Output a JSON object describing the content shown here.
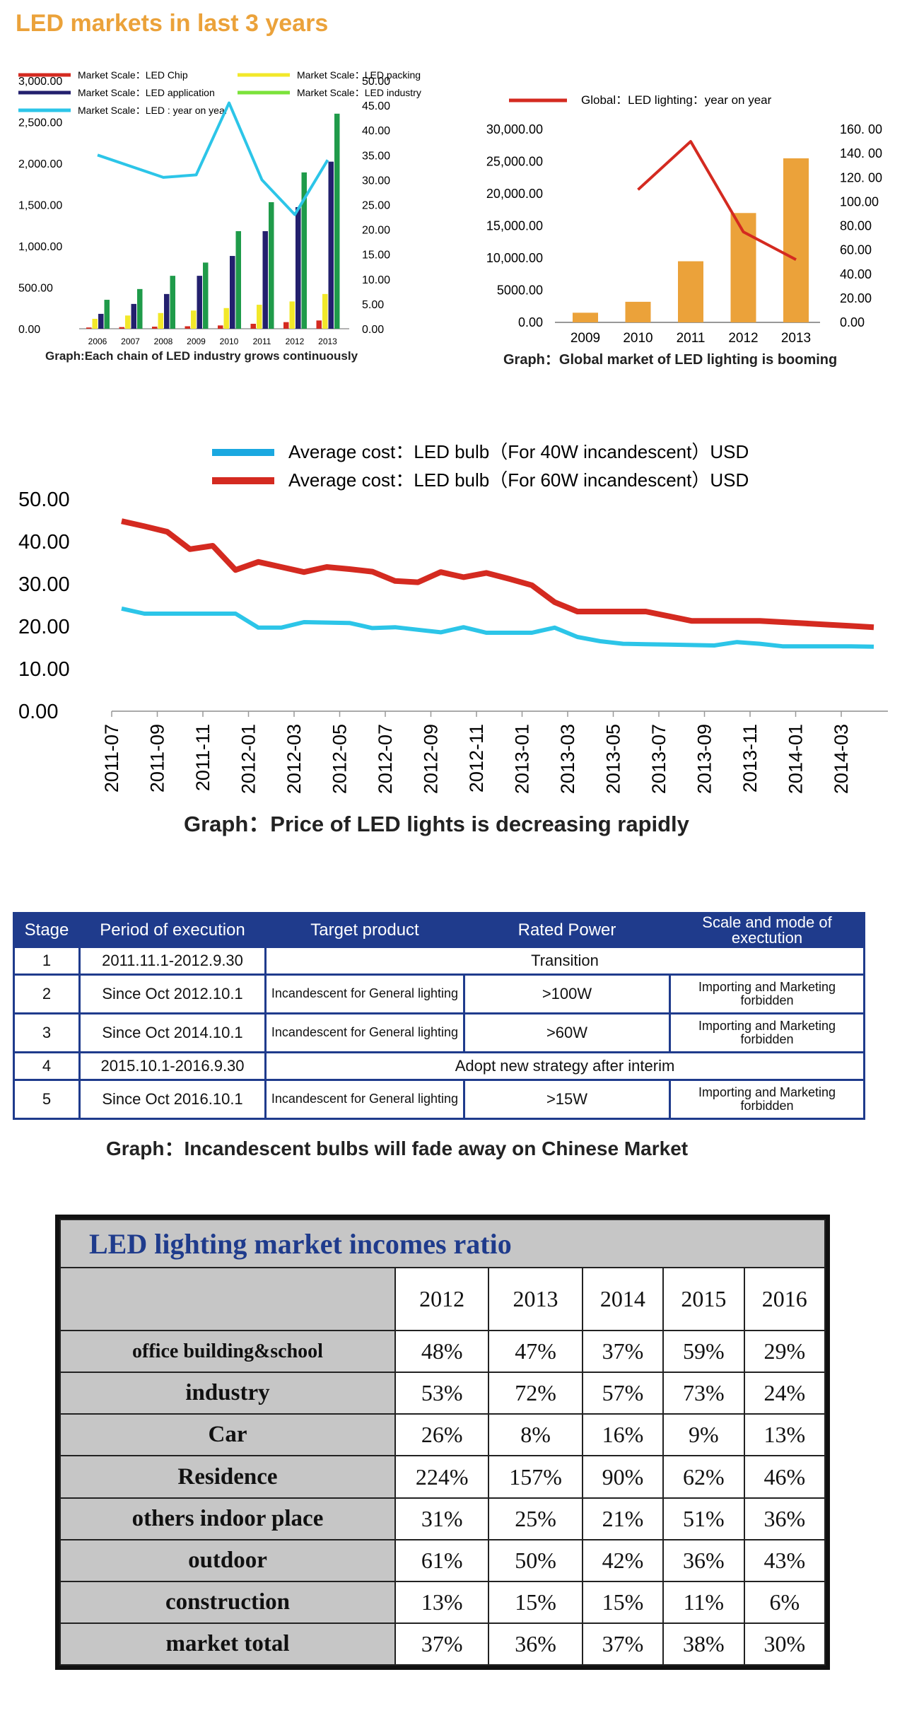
{
  "page_title": "LED markets in last 3 years",
  "chart1": {
    "legend": [
      "Market Scale：LED Chip",
      "Market Scale：LED packing",
      "Market Scale：LED application",
      "Market Scale：LED industry",
      "Market Scale：LED : year on year"
    ],
    "caption": "Graph:Each chain of LED industry grows continuously"
  },
  "chart2": {
    "legend": "Global：LED lighting：year on year",
    "caption": "Graph：Global market of LED lighting is booming"
  },
  "chart3": {
    "legend": [
      "Average cost：LED bulb（For 40W incandescent）USD",
      "Average cost：LED bulb（For 60W incandescent）USD"
    ],
    "caption": "Graph：Price of LED lights is decreasing rapidly"
  },
  "chart_data": [
    {
      "type": "bar",
      "categories": [
        "2006",
        "2007",
        "2008",
        "2009",
        "2010",
        "2011",
        "2012",
        "2013"
      ],
      "ylim": [
        0,
        3000
      ],
      "yticks": [
        "3,000.00",
        "2,500.00",
        "2,000.00",
        "1,500.00",
        "1,000.00",
        "500.00",
        "0.00"
      ],
      "y2lim": [
        0,
        50
      ],
      "y2ticks": [
        "50.00",
        "45.00",
        "40.00",
        "35.00",
        "30.00",
        "25.00",
        "20.00",
        "15.00",
        "10.00",
        "5.00",
        "0.00"
      ],
      "legend_position": "top",
      "series": [
        {
          "name": "Market Scale：LED Chip",
          "color": "#d42a20",
          "values": [
            15,
            20,
            25,
            30,
            40,
            60,
            80,
            100
          ]
        },
        {
          "name": "Market Scale：LED packing",
          "color": "#f2e82a",
          "values": [
            120,
            160,
            190,
            220,
            250,
            290,
            330,
            420
          ]
        },
        {
          "name": "Market Scale：LED application",
          "color": "#23206e",
          "values": [
            180,
            300,
            420,
            640,
            880,
            1180,
            1470,
            2020
          ]
        },
        {
          "name": "Market Scale：LED industry",
          "color": "#1f9b4a",
          "values": [
            350,
            480,
            640,
            800,
            1180,
            1530,
            1890,
            2600
          ]
        },
        {
          "name": "Market Scale：LED : year on year",
          "type": "line",
          "axis": "right",
          "color": "#2cc5e8",
          "values": [
            35,
            null,
            30.5,
            31,
            45.5,
            30,
            23,
            34
          ]
        }
      ]
    },
    {
      "type": "bar",
      "categories": [
        "2009",
        "2010",
        "2011",
        "2012",
        "2013"
      ],
      "ylim": [
        0,
        30000
      ],
      "yticks": [
        "30,000.00",
        "25,000.00",
        "20,000.00",
        "15,000.00",
        "10,000.00",
        "5000.00",
        "0.00"
      ],
      "y2lim": [
        0,
        160
      ],
      "y2ticks": [
        "160. 00",
        "140. 00",
        "120. 00",
        "100.00",
        "80.00",
        "60.00",
        "40.00",
        "20.00",
        "0.00"
      ],
      "legend_position": "top",
      "series": [
        {
          "name": "",
          "color": "#eba23a",
          "values": [
            1500,
            3200,
            9500,
            17000,
            25500
          ]
        },
        {
          "name": "Global：LED lighting：year on year",
          "type": "line",
          "axis": "right",
          "color": "#d42a20",
          "values": [
            null,
            110,
            150,
            75,
            52
          ]
        }
      ]
    },
    {
      "type": "line",
      "ylim": [
        0,
        50
      ],
      "yticks": [
        "50.00",
        "40.00",
        "30.00",
        "20.00",
        "10.00",
        "0.00"
      ],
      "xtick_labels": [
        "2011-07",
        "2011-09",
        "2011-11",
        "2012-01",
        "2012-03",
        "2012-05",
        "2012-07",
        "2012-09",
        "2012-11",
        "2013-01",
        "2013-03",
        "2013-05",
        "2013-07",
        "2013-09",
        "2013-11",
        "2014-01",
        "2014-03"
      ],
      "x_months": [
        "2011-07",
        "2011-08",
        "2011-09",
        "2011-10",
        "2011-11",
        "2011-12",
        "2012-01",
        "2012-02",
        "2012-03",
        "2012-04",
        "2012-05",
        "2012-06",
        "2012-07",
        "2012-08",
        "2012-09",
        "2012-10",
        "2012-11",
        "2012-12",
        "2013-01",
        "2013-02",
        "2013-03",
        "2013-04",
        "2013-05",
        "2013-06",
        "2013-07",
        "2013-08",
        "2013-09",
        "2013-10",
        "2013-11",
        "2013-12",
        "2014-01",
        "2014-02",
        "2014-03",
        "2014-04"
      ],
      "legend_position": "top",
      "series": [
        {
          "name": "Average cost：LED bulb（For 40W incandescent）USD",
          "color": "#2cc5e8",
          "values": [
            24.2,
            23.0,
            23.0,
            23.0,
            23.0,
            23.0,
            19.7,
            19.7,
            21.0,
            20.9,
            20.8,
            19.6,
            19.8,
            19.2,
            18.6,
            19.8,
            18.5,
            18.5,
            18.5,
            19.7,
            17.5,
            16.5,
            15.9,
            15.8,
            15.7,
            15.6,
            15.5,
            16.3,
            15.9,
            15.3,
            15.3,
            15.3,
            15.3,
            15.2
          ]
        },
        {
          "name": "Average cost：LED bulb（For 60W incandescent）USD",
          "color": "#d42a20",
          "values": [
            44.8,
            43.6,
            42.3,
            38.2,
            39.0,
            33.3,
            35.2,
            34.0,
            32.8,
            34.0,
            33.5,
            32.9,
            30.7,
            30.4,
            32.8,
            31.6,
            32.6,
            31.2,
            29.7,
            25.7,
            23.5,
            23.5,
            23.5,
            23.5,
            22.4,
            21.3,
            21.3,
            21.3,
            21.3,
            21.0,
            20.7,
            20.4,
            20.1,
            19.8
          ]
        }
      ]
    }
  ],
  "stage_table": {
    "headers": [
      "Stage",
      "Period of execution",
      "Target product",
      "Rated Power",
      "Scale and mode of exectution"
    ],
    "rows": [
      {
        "stage": "1",
        "period": "2011.11.1-2012.9.30",
        "merged": "Transition"
      },
      {
        "stage": "2",
        "period": "Since Oct 2012.10.1",
        "product": "Incandescent for General lighting",
        "power": ">100W",
        "mode": "Importing and Marketing forbidden"
      },
      {
        "stage": "3",
        "period": "Since Oct 2014.10.1",
        "product": "Incandescent for General lighting",
        "power": ">60W",
        "mode": "Importing and Marketing forbidden"
      },
      {
        "stage": "4",
        "period": "2015.10.1-2016.9.30",
        "merged": "Adopt new strategy after interim"
      },
      {
        "stage": "5",
        "period": "Since Oct 2016.10.1",
        "product": "Incandescent for General lighting",
        "power": ">15W",
        "mode": "Importing and Marketing forbidden"
      }
    ],
    "caption": "Graph：Incandescent bulbs will fade away on Chinese Market"
  },
  "income_table": {
    "title": "LED lighting market incomes ratio",
    "years": [
      "2012",
      "2013",
      "2014",
      "2015",
      "2016"
    ],
    "rows": [
      {
        "label": "office building&school",
        "values": [
          "48%",
          "47%",
          "37%",
          "59%",
          "29%"
        ]
      },
      {
        "label": "industry",
        "values": [
          "53%",
          "72%",
          "57%",
          "73%",
          "24%"
        ]
      },
      {
        "label": "Car",
        "values": [
          "26%",
          "8%",
          "16%",
          "9%",
          "13%"
        ]
      },
      {
        "label": "Residence",
        "values": [
          "224%",
          "157%",
          "90%",
          "62%",
          "46%"
        ]
      },
      {
        "label": "others indoor place",
        "values": [
          "31%",
          "25%",
          "21%",
          "51%",
          "36%"
        ]
      },
      {
        "label": "outdoor",
        "values": [
          "61%",
          "50%",
          "42%",
          "36%",
          "43%"
        ]
      },
      {
        "label": "construction",
        "values": [
          "13%",
          "15%",
          "15%",
          "11%",
          "6%"
        ]
      },
      {
        "label": "market total",
        "values": [
          "37%",
          "36%",
          "37%",
          "38%",
          "30%"
        ]
      }
    ]
  }
}
